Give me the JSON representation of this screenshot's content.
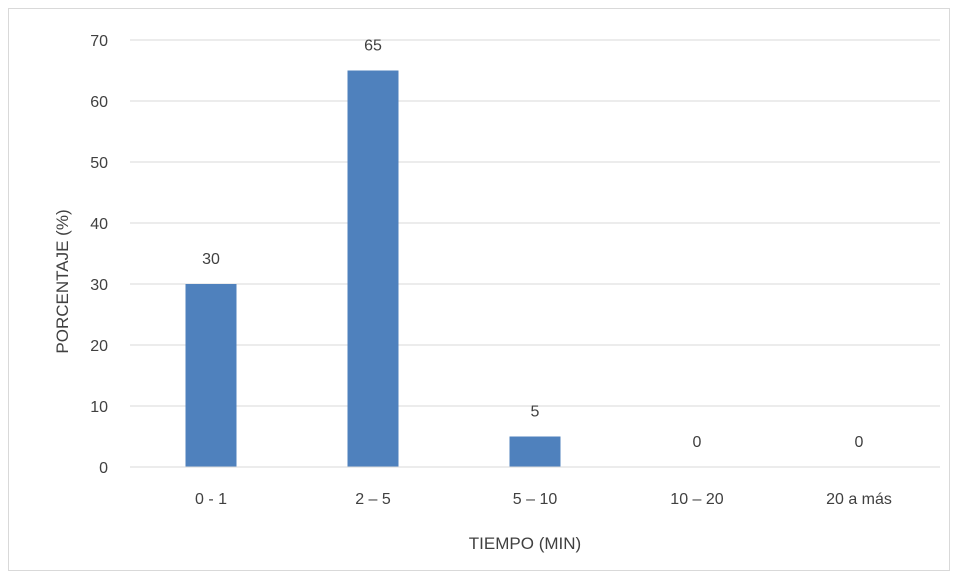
{
  "chart_data": {
    "type": "bar",
    "categories": [
      "0 - 1",
      "2 – 5",
      "5 – 10",
      "10 – 20",
      "20 a más"
    ],
    "values": [
      30,
      65,
      5,
      0,
      0
    ],
    "data_labels": [
      "30",
      "65",
      "5",
      "0",
      "0"
    ],
    "title": "",
    "xlabel": "TIEMPO (MIN)",
    "ylabel": "PORCENTAJE (%)",
    "ylim": [
      0,
      70
    ],
    "yticks": [
      0,
      10,
      20,
      30,
      40,
      50,
      60,
      70
    ],
    "grid": true,
    "legend": "none",
    "colors": {
      "bar": "#4f81bd",
      "grid": "#d9d9d9",
      "text": "#404040"
    }
  }
}
